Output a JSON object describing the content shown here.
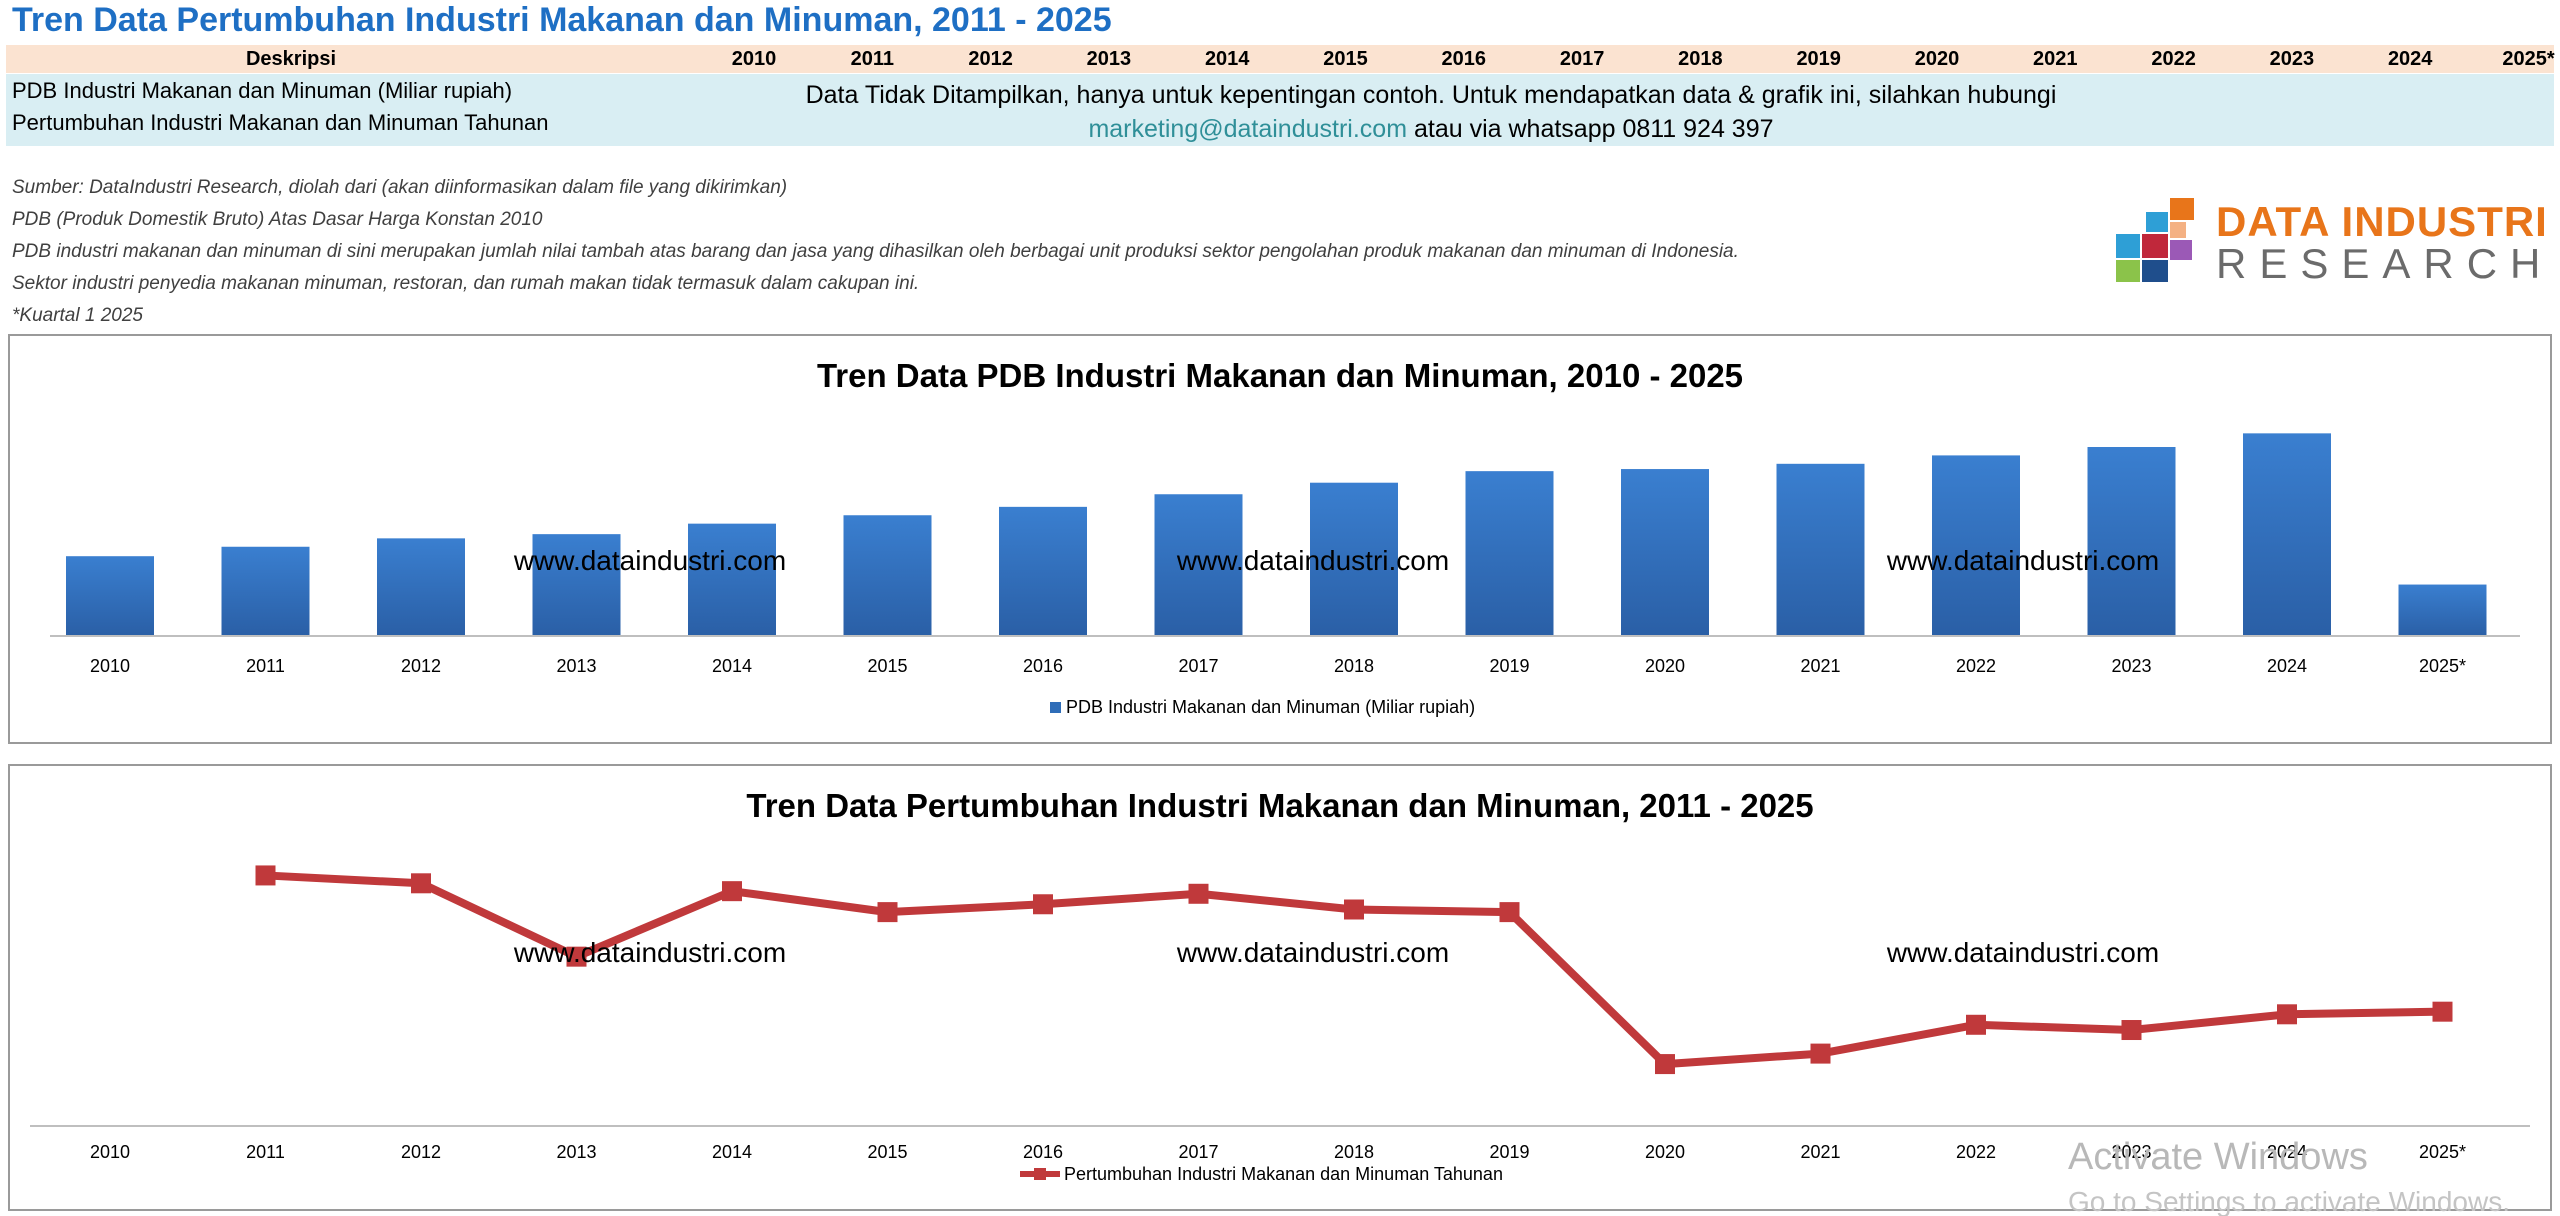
{
  "page": {
    "title": "Tren Data Pertumbuhan Industri Makanan dan Minuman, 2011 - 2025"
  },
  "table": {
    "header_label": "Deskripsi",
    "years": [
      "2010",
      "2011",
      "2012",
      "2013",
      "2014",
      "2015",
      "2016",
      "2017",
      "2018",
      "2019",
      "2020",
      "2021",
      "2022",
      "2023",
      "2024",
      "2025*"
    ],
    "rows": [
      "PDB Industri Makanan dan Minuman (Miliar rupiah)",
      "Pertumbuhan Industri Makanan dan Minuman Tahunan"
    ],
    "notice_text": "Data Tidak Ditampilkan, hanya untuk kepentingan contoh. Untuk mendapatkan data & grafik  ini, silahkan hubungi",
    "notice_email": "marketing@dataindustri.com",
    "notice_suffix": " atau via whatsapp 0811 924 397"
  },
  "notes": [
    "Sumber: DataIndustri Research, diolah dari (akan diinformasikan dalam file yang dikirimkan)",
    "PDB (Produk Domestik Bruto) Atas Dasar Harga Konstan 2010",
    "PDB industri makanan dan minuman di sini merupakan jumlah nilai tambah atas barang dan jasa yang dihasilkan oleh berbagai unit produksi sektor pengolahan produk makanan dan minuman di Indonesia.",
    "Sektor industri penyedia makanan minuman, restoran, dan rumah makan tidak termasuk dalam cakupan ini.",
    "*Kuartal 1 2025"
  ],
  "logo": {
    "line1": "DATA INDUSTRI",
    "line2": "RESEARCH",
    "colors": [
      "#e8751a",
      "#2e9fd6",
      "#c0283b",
      "#8bc34a",
      "#9b59b6",
      "#1f4e8c",
      "#f4b183"
    ]
  },
  "watermark": "www.dataindustri.com",
  "os_overlay": {
    "line1": "Activate Windows",
    "line2": "Go to Settings to activate Windows."
  },
  "chart_data": [
    {
      "type": "bar",
      "title": "Tren Data PDB Industri Makanan dan Minuman, 2010 - 2025",
      "categories": [
        "2010",
        "2011",
        "2012",
        "2013",
        "2014",
        "2015",
        "2016",
        "2017",
        "2018",
        "2019",
        "2020",
        "2021",
        "2022",
        "2023",
        "2024",
        "2025*"
      ],
      "series": [
        {
          "name": "PDB Industri Makanan dan Minuman (Miliar rupiah)",
          "values": [
            76,
            85,
            93,
            97,
            107,
            115,
            123,
            135,
            146,
            157,
            159,
            164,
            172,
            180,
            193,
            49
          ]
        }
      ],
      "ylim": [
        0,
        200
      ],
      "y_axis_shown": false,
      "grid": false,
      "legend": "bottom",
      "color": "#2f6db8"
    },
    {
      "type": "line",
      "title": "Tren Data Pertumbuhan Industri Makanan dan Minuman, 2011 - 2025",
      "categories": [
        "2010",
        "2011",
        "2012",
        "2013",
        "2014",
        "2015",
        "2016",
        "2017",
        "2018",
        "2019",
        "2020",
        "2021",
        "2022",
        "2023",
        "2024",
        "2025*"
      ],
      "series": [
        {
          "name": "Pertumbuhan Industri Makanan dan Minuman Tahunan",
          "values": [
            null,
            8.8,
            8.5,
            5.7,
            8.2,
            7.4,
            7.7,
            8.1,
            7.5,
            7.4,
            1.6,
            2.0,
            3.1,
            2.9,
            3.5,
            3.6
          ]
        }
      ],
      "ylim": [
        0,
        10
      ],
      "y_axis_shown": false,
      "grid": false,
      "legend": "bottom",
      "color": "#c0393b"
    }
  ]
}
